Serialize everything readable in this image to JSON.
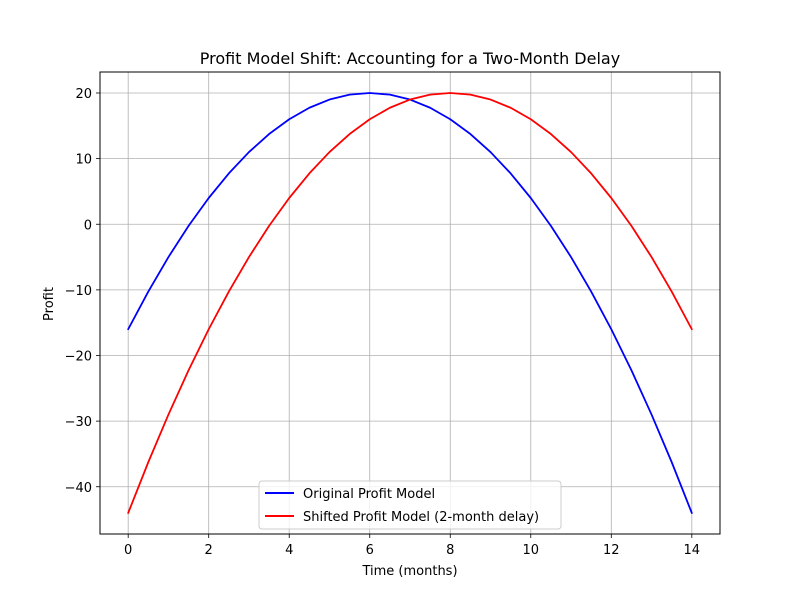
{
  "chart_data": {
    "type": "line",
    "title": "Profit Model Shift: Accounting for a Two-Month Delay",
    "xlabel": "Time (months)",
    "ylabel": "Profit",
    "xlim": [
      -0.7,
      14.7
    ],
    "ylim": [
      -47.2,
      23.2
    ],
    "x_ticks": [
      0,
      2,
      4,
      6,
      8,
      10,
      12,
      14
    ],
    "y_ticks": [
      -40,
      -30,
      -20,
      -10,
      0,
      10,
      20
    ],
    "x_tick_labels": [
      "0",
      "2",
      "4",
      "6",
      "8",
      "10",
      "12",
      "14"
    ],
    "y_tick_labels": [
      "−40",
      "−30",
      "−20",
      "−10",
      "0",
      "10",
      "20"
    ],
    "grid": true,
    "legend_position": "lower center",
    "series": [
      {
        "name": "Original Profit Model",
        "color": "#0000ff",
        "x": [
          0,
          0.5,
          1,
          1.5,
          2,
          2.5,
          3,
          3.5,
          4,
          4.5,
          5,
          5.5,
          6,
          6.5,
          7,
          7.5,
          8,
          8.5,
          9,
          9.5,
          10,
          10.5,
          11,
          11.5,
          12,
          12.5,
          13,
          13.5,
          14
        ],
        "y": [
          -16,
          -10.25,
          -5,
          -0.25,
          4,
          7.75,
          11,
          13.75,
          16,
          17.75,
          19,
          19.75,
          20,
          19.75,
          19,
          17.75,
          16,
          13.75,
          11,
          7.75,
          4,
          -0.25,
          -5,
          -10.25,
          -16,
          -22.25,
          -29,
          -36.25,
          -44
        ]
      },
      {
        "name": "Shifted Profit Model (2-month delay)",
        "color": "#ff0000",
        "x": [
          0,
          0.5,
          1,
          1.5,
          2,
          2.5,
          3,
          3.5,
          4,
          4.5,
          5,
          5.5,
          6,
          6.5,
          7,
          7.5,
          8,
          8.5,
          9,
          9.5,
          10,
          10.5,
          11,
          11.5,
          12,
          12.5,
          13,
          13.5,
          14
        ],
        "y": [
          -44,
          -36.25,
          -29,
          -22.25,
          -16,
          -10.25,
          -5,
          -0.25,
          4,
          7.75,
          11,
          13.75,
          16,
          17.75,
          19,
          19.75,
          20,
          19.75,
          19,
          17.75,
          16,
          13.75,
          11,
          7.75,
          4,
          -0.25,
          -5,
          -10.25,
          -16
        ]
      }
    ]
  }
}
